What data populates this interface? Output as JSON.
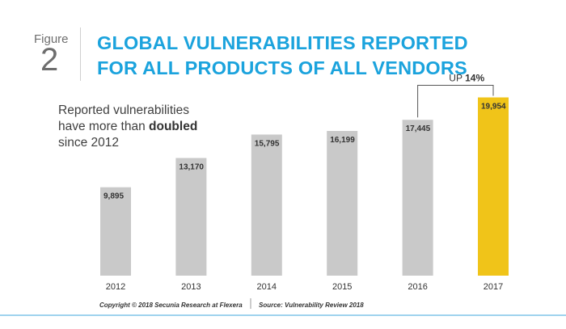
{
  "figure": {
    "label": "Figure",
    "number": "2"
  },
  "title_lines": [
    "GLOBAL VULNERABILITIES REPORTED",
    "FOR ALL PRODUCTS OF ALL VENDORS"
  ],
  "callout": {
    "line1": "Reported vulnerabilities",
    "line2_pre": "have more than ",
    "line2_bold": "doubled",
    "line3": "since 2012"
  },
  "annotation": {
    "prefix": "UP ",
    "value": "14%"
  },
  "footer": {
    "copyright": "Copyright © 2018 Secunia Research at Flexera",
    "source": "Source: Vulnerability Review 2018"
  },
  "colors": {
    "title": "#1ba3dd",
    "bar": "#c9c9c9",
    "highlight_bar": "#f0c419",
    "rule": "#9fd3ee"
  },
  "chart_data": {
    "type": "bar",
    "categories": [
      "2012",
      "2013",
      "2014",
      "2015",
      "2016",
      "2017"
    ],
    "values": [
      9895,
      13170,
      15795,
      16199,
      17445,
      19954
    ],
    "value_labels": [
      "9,895",
      "13,170",
      "15,795",
      "16,199",
      "17,445",
      "19,954"
    ],
    "highlight_index": 5,
    "ylim": [
      0,
      20000
    ],
    "grid": false,
    "title": "GLOBAL VULNERABILITIES REPORTED FOR ALL PRODUCTS OF ALL VENDORS",
    "xlabel": "",
    "ylabel": ""
  }
}
